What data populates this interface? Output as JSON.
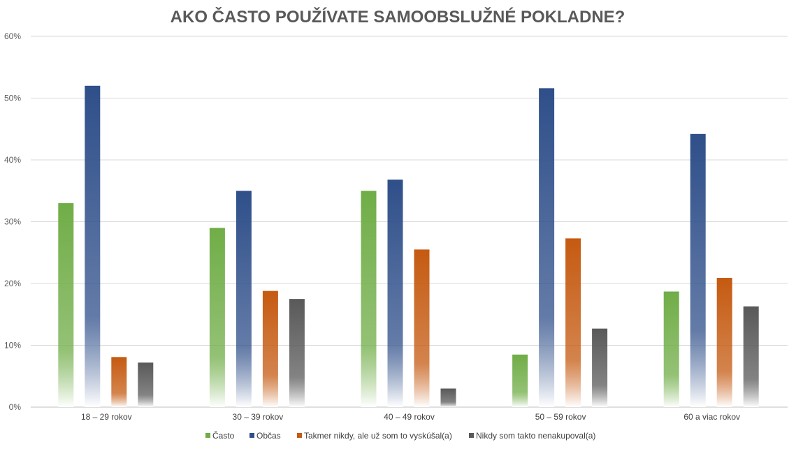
{
  "chart_data": {
    "type": "bar",
    "title": "AKO ČASTO POUŽÍVATE SAMOOBSLUŽNÉ POKLADNE?",
    "categories": [
      "18 – 29 rokov",
      "30 – 39 rokov",
      "40 – 49 rokov",
      "50 – 59 rokov",
      "60 a viac rokov"
    ],
    "series": [
      {
        "name": "Často",
        "color": "#70ad47",
        "values": [
          33,
          29,
          35,
          8.5,
          18.7
        ]
      },
      {
        "name": "Občas",
        "color": "#2f4f8a",
        "values": [
          52,
          35,
          36.8,
          51.6,
          44.2
        ]
      },
      {
        "name": "Takmer nikdy, ale už som to vyskúšal(a)",
        "color": "#c55a11",
        "values": [
          8.1,
          18.8,
          25.5,
          27.3,
          20.9
        ]
      },
      {
        "name": "Nikdy som takto nenakupoval(a)",
        "color": "#595959",
        "values": [
          7.2,
          17.5,
          3,
          12.7,
          16.3
        ]
      }
    ],
    "ylim": [
      0,
      60
    ],
    "yticks": [
      "0%",
      "10%",
      "20%",
      "30%",
      "40%",
      "50%",
      "60%"
    ],
    "ytick_values": [
      0,
      10,
      20,
      30,
      40,
      50,
      60
    ],
    "grid": true,
    "legend": "bottom",
    "xlabel": "",
    "ylabel": ""
  }
}
